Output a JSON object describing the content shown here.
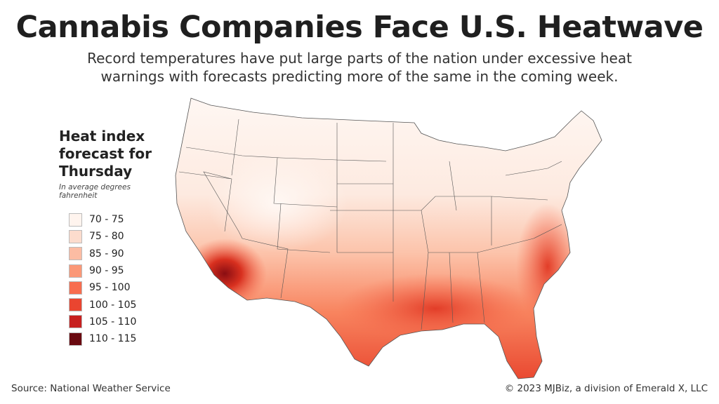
{
  "title": "Cannabis Companies Face U.S. Heatwave",
  "subtitle_line1": "Record temperatures have put large parts of the nation under excessive heat",
  "subtitle_line2": "warnings with forecasts predicting more of the same in the coming week.",
  "legend": {
    "title_line1": "Heat index",
    "title_line2": "forecast for",
    "title_line3": "Thursday",
    "note_line1": "In average degrees",
    "note_line2": "fahrenheit",
    "items": [
      {
        "label": "70 - 75",
        "color": "#fff4ee"
      },
      {
        "label": "75 - 80",
        "color": "#fcdccd"
      },
      {
        "label": "85 - 90",
        "color": "#fcbca3"
      },
      {
        "label": "90 - 95",
        "color": "#fb9877"
      },
      {
        "label": "95 - 100",
        "color": "#f86d4f"
      },
      {
        "label": "100 - 105",
        "color": "#ea4530"
      },
      {
        "label": "105 - 110",
        "color": "#c7201f"
      },
      {
        "label": "110 - 115",
        "color": "#6a0a10"
      }
    ]
  },
  "source": "Source: National Weather Service",
  "copyright": "© 2023 MJBiz, a division of Emerald X, LLC"
}
